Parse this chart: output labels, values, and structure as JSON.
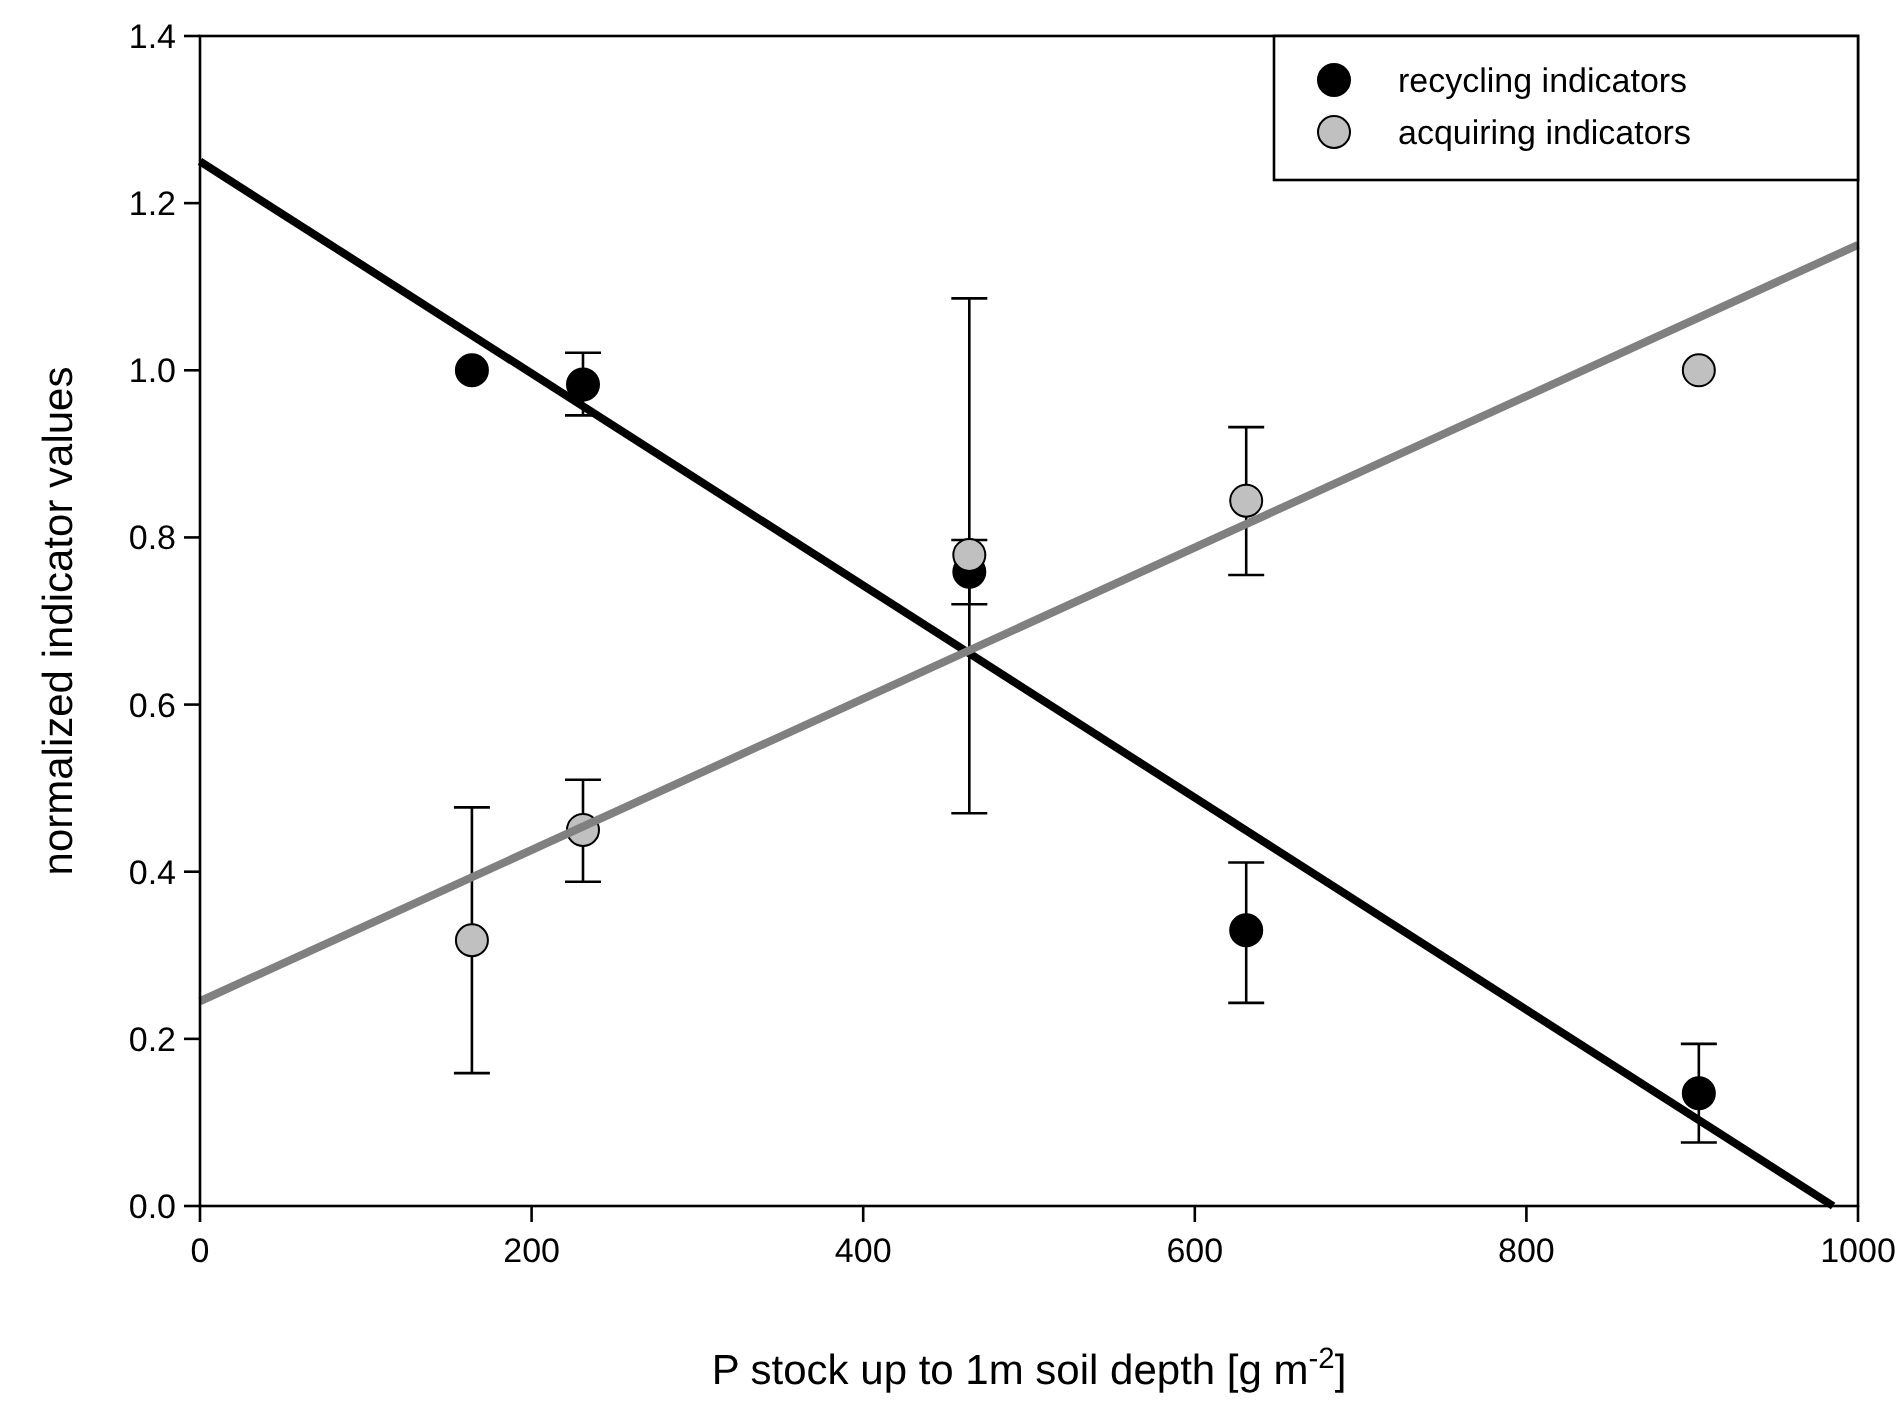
{
  "chart_data": {
    "type": "scatter",
    "xlabel": "P stock up to 1m soil depth [g m$^{-2}$]",
    "ylabel": "normalized indicator values",
    "xlim": [
      0,
      1000
    ],
    "xticks": [
      0,
      200,
      400,
      600,
      800,
      1000
    ],
    "ylim": [
      0,
      1.4
    ],
    "yticks": [
      {
        "value": 0,
        "label": "0.0"
      },
      0.2,
      0.4,
      0.6,
      0.8,
      {
        "value": 1,
        "label": "1.0"
      },
      1.2,
      1.4
    ],
    "grid": false,
    "legend": "top right",
    "marker": "circle",
    "series": [
      {
        "name": "recycling indicators",
        "color": "#000000",
        "x": [
          164,
          231,
          464,
          631,
          904
        ],
        "values": [
          1.0,
          0.983,
          0.759,
          0.33,
          0.135
        ],
        "errors": [
          null,
          [
            0.946,
            1.021
          ],
          [
            0.72,
            0.797
          ],
          [
            0.243,
            0.411
          ],
          [
            0.076,
            0.194
          ]
        ]
      },
      {
        "name": "acquiring indicators",
        "color": "#c0c0c0",
        "x": [
          164,
          231,
          464,
          631,
          904
        ],
        "values": [
          0.318,
          0.45,
          0.779,
          0.844,
          1.0
        ],
        "errors": [
          [
            0.159,
            0.477
          ],
          [
            0.388,
            0.51
          ],
          [
            0.47,
            1.086
          ],
          [
            0.755,
            0.932
          ],
          null
        ]
      },
      {
        "type": "line",
        "color": "#000000",
        "x": [
          0,
          985
        ],
        "values": [
          1.25,
          0
        ],
        "line_style": "solid",
        "marker": "none"
      },
      {
        "type": "line",
        "color": "#808080",
        "x": [
          0,
          1000
        ],
        "values": [
          0.245,
          1.15
        ],
        "line_style": "solid",
        "marker": "none"
      }
    ]
  }
}
